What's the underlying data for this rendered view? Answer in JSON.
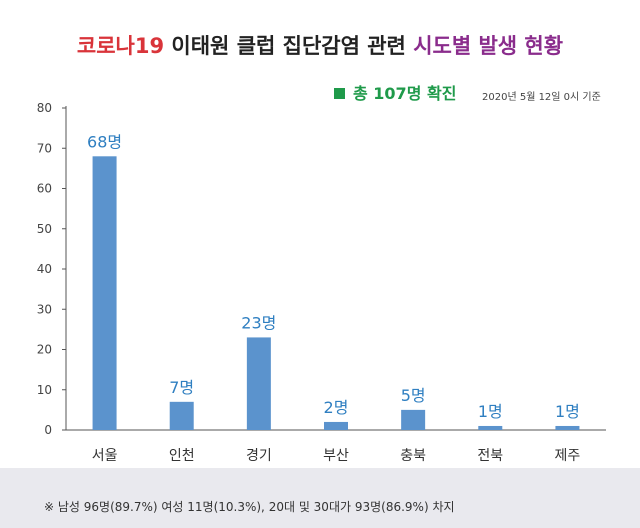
{
  "title": {
    "part1": "코로나19",
    "part2": "이태원 클럽 집단감염 관련",
    "part3": "시도별 발생 현황"
  },
  "subtitle": "총 107명 확진",
  "date_note": "2020년 5월 12일 0시 기준",
  "footnote": "※ 남성 96명(89.7%) 여성 11명(10.3%), 20대 및 30대가 93명(86.9%) 차지",
  "colors": {
    "bar": "#5b93cd",
    "data_label": "#2f7fc1",
    "title_red": "#d9343a",
    "title_purple": "#8a2c8c",
    "accent_green": "#1f9a4a"
  },
  "chart_data": {
    "type": "bar",
    "categories": [
      "서울",
      "인천",
      "경기",
      "부산",
      "충북",
      "전북",
      "제주"
    ],
    "values": [
      68,
      7,
      23,
      2,
      5,
      1,
      1
    ],
    "data_labels": [
      "68명",
      "7명",
      "23명",
      "2명",
      "5명",
      "1명",
      "1명"
    ],
    "ylim": [
      0,
      80
    ],
    "yticks": [
      0,
      10,
      20,
      30,
      40,
      50,
      60,
      70,
      80
    ],
    "grid": false,
    "xlabel": "",
    "ylabel": ""
  }
}
